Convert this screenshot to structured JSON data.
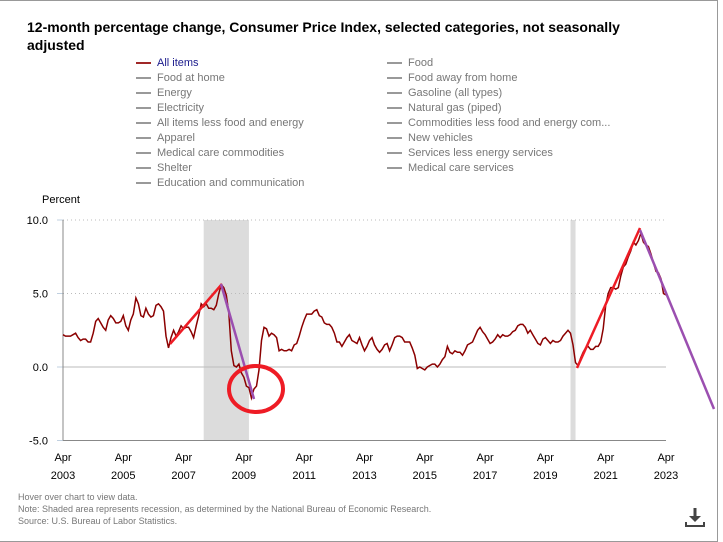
{
  "chart_data": {
    "type": "line",
    "title": "12-month percentage change, Consumer Price Index, selected categories, not seasonally adjusted",
    "ylabel": "Percent",
    "ylim": [
      -5,
      10
    ],
    "yticks": [
      "10.0",
      "5.0",
      "0.0",
      "-5.0"
    ],
    "xticks": [
      {
        "m": "Apr",
        "y": "2003"
      },
      {
        "m": "Apr",
        "y": "2005"
      },
      {
        "m": "Apr",
        "y": "2007"
      },
      {
        "m": "Apr",
        "y": "2009"
      },
      {
        "m": "Apr",
        "y": "2011"
      },
      {
        "m": "Apr",
        "y": "2013"
      },
      {
        "m": "Apr",
        "y": "2015"
      },
      {
        "m": "Apr",
        "y": "2017"
      },
      {
        "m": "Apr",
        "y": "2019"
      },
      {
        "m": "Apr",
        "y": "2021"
      },
      {
        "m": "Apr",
        "y": "2023"
      }
    ],
    "xrange": [
      "2003-04",
      "2023-04"
    ],
    "grid": "horizontal dotted",
    "recessions": [
      [
        "2007-12",
        "2009-06"
      ],
      [
        "2020-02",
        "2020-04"
      ]
    ],
    "legend_placement": "top",
    "legend": {
      "left": [
        "All items",
        "Food at home",
        "Energy",
        "Electricity",
        "All items less food and energy",
        "Apparel",
        "Medical care commodities",
        "Shelter",
        "Education and communication"
      ],
      "right": [
        "Food",
        "Food away from home",
        "Gasoline (all types)",
        "Natural gas (piped)",
        "Commodities less food and energy com...",
        "New vehicles",
        "Services less energy services",
        "Medical care services"
      ]
    },
    "series": [
      {
        "name": "All items",
        "color": "#8b0000",
        "monthly_by_year": {
          "2003": [
            null,
            null,
            null,
            2.2,
            2.1,
            2.1,
            2.1,
            2.2,
            2.3,
            2.0,
            1.8,
            1.9
          ],
          "2004": [
            1.9,
            1.7,
            1.7,
            2.3,
            3.1,
            3.3,
            3.0,
            2.7,
            2.5,
            3.2,
            3.5,
            3.3
          ],
          "2005": [
            3.0,
            3.0,
            3.1,
            3.5,
            2.8,
            2.5,
            3.2,
            3.6,
            4.7,
            4.3,
            3.5,
            3.4
          ],
          "2006": [
            4.0,
            3.6,
            3.4,
            3.5,
            4.2,
            4.3,
            4.1,
            3.8,
            2.1,
            1.3,
            2.0,
            2.5
          ],
          "2007": [
            2.1,
            2.4,
            2.8,
            2.6,
            2.7,
            2.7,
            2.4,
            2.0,
            2.8,
            3.5,
            4.3,
            4.1
          ],
          "2008": [
            4.3,
            4.0,
            4.0,
            3.9,
            4.2,
            5.0,
            5.6,
            5.4,
            4.9,
            3.7,
            1.1,
            0.1
          ],
          "2009": [
            0.0,
            0.2,
            -0.4,
            -0.7,
            -1.3,
            -1.4,
            -2.1,
            -1.5,
            -1.3,
            -0.2,
            1.8,
            2.7
          ],
          "2010": [
            2.6,
            2.1,
            2.3,
            2.2,
            2.0,
            1.1,
            1.2,
            1.1,
            1.1,
            1.2,
            1.1,
            1.5
          ],
          "2011": [
            1.6,
            2.1,
            2.7,
            3.2,
            3.6,
            3.6,
            3.6,
            3.8,
            3.9,
            3.5,
            3.4,
            3.0
          ],
          "2012": [
            2.9,
            2.9,
            2.7,
            2.3,
            1.7,
            1.7,
            1.4,
            1.7,
            2.0,
            2.2,
            1.8,
            1.7
          ],
          "2013": [
            1.6,
            2.0,
            1.5,
            1.1,
            1.4,
            1.8,
            2.0,
            1.5,
            1.2,
            1.0,
            1.2,
            1.5
          ],
          "2014": [
            1.6,
            1.1,
            1.5,
            2.0,
            2.1,
            2.1,
            2.0,
            1.7,
            1.7,
            1.7,
            1.3,
            0.8
          ],
          "2015": [
            -0.1,
            0.0,
            -0.1,
            -0.2,
            0.0,
            0.1,
            0.2,
            0.2,
            0.0,
            0.2,
            0.5,
            0.7
          ],
          "2016": [
            1.4,
            1.0,
            0.9,
            1.1,
            1.0,
            1.0,
            0.8,
            1.1,
            1.5,
            1.6,
            1.7,
            2.1
          ],
          "2017": [
            2.5,
            2.7,
            2.4,
            2.2,
            1.9,
            1.6,
            1.7,
            1.9,
            2.2,
            2.0,
            2.2,
            2.1
          ],
          "2018": [
            2.1,
            2.2,
            2.4,
            2.5,
            2.8,
            2.9,
            2.9,
            2.7,
            2.3,
            2.5,
            2.2,
            1.9
          ],
          "2019": [
            1.6,
            1.5,
            1.9,
            2.0,
            1.8,
            1.6,
            1.8,
            1.7,
            1.7,
            1.8,
            2.1,
            2.3
          ],
          "2020": [
            2.5,
            2.3,
            1.5,
            0.3,
            0.1,
            0.6,
            1.0,
            1.3,
            1.4,
            1.2,
            1.2,
            1.4
          ],
          "2021": [
            1.4,
            1.7,
            2.6,
            4.2,
            5.0,
            5.4,
            5.4,
            5.3,
            5.4,
            6.2,
            6.8,
            7.0
          ],
          "2022": [
            7.5,
            7.9,
            8.5,
            8.3,
            8.6,
            9.1,
            8.5,
            8.3,
            8.2,
            7.7,
            7.1,
            6.5
          ],
          "2023": [
            6.4,
            6.0,
            5.0,
            4.9
          ]
        }
      }
    ]
  },
  "colors": {
    "series": "#8b0000",
    "recession": "#dcdcdc",
    "annotation_red": "#ee1c25",
    "annotation_purple": "#9b4fb0"
  },
  "footer": {
    "hover": "Hover over chart to view data.",
    "note": "Note: Shaded area represents recession, as determined by the National Bureau of Economic Research.",
    "source": "Source: U.S. Bureau of Labor Statistics."
  },
  "icons": {
    "download": "download-icon"
  }
}
